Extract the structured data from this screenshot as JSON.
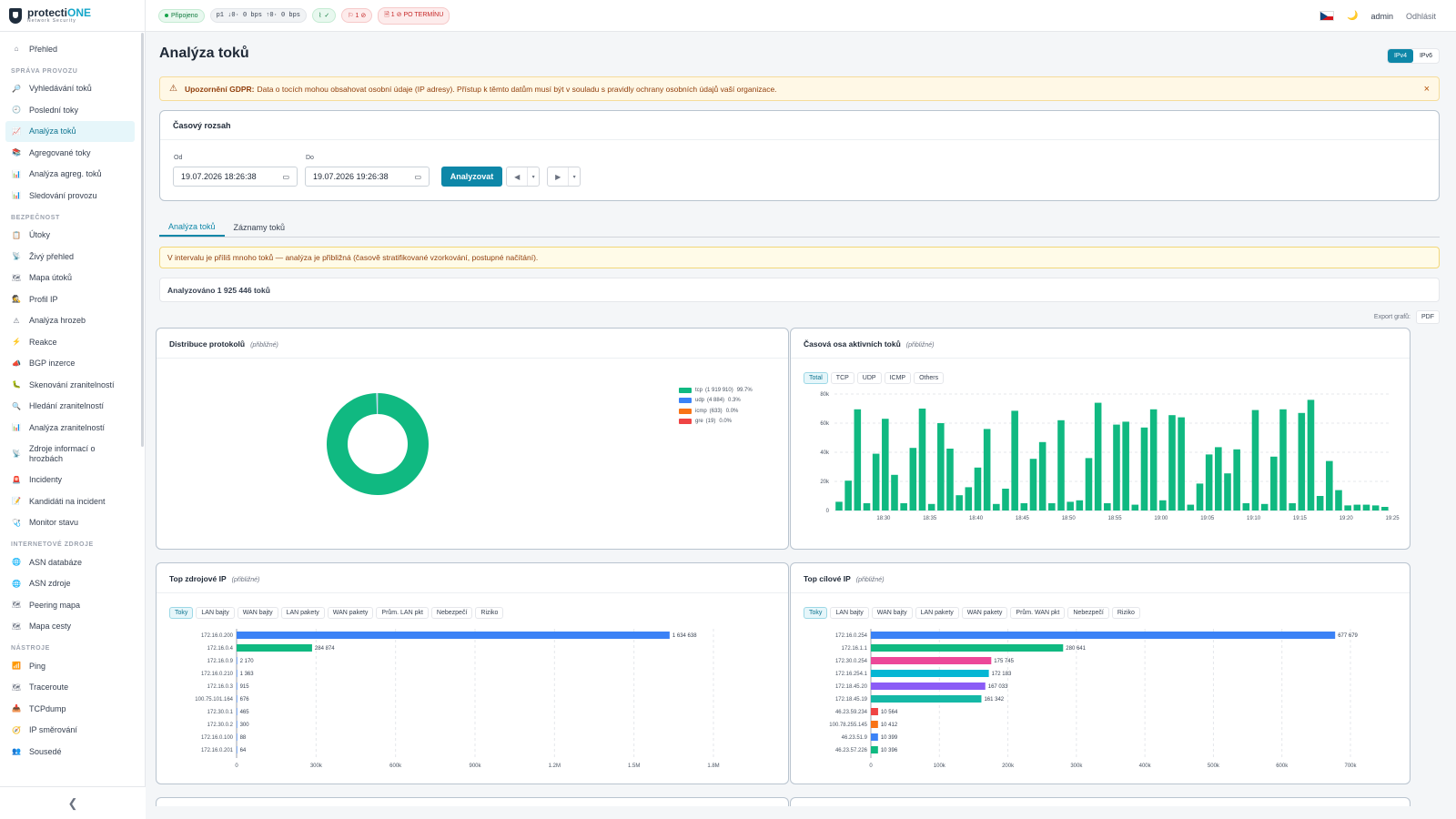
{
  "brand": {
    "name_a": "protecti",
    "name_b": "ONE",
    "sub": "Network Security"
  },
  "sidebar": {
    "top": [
      {
        "icon": "⌂",
        "label": "Přehled",
        "name": "home-icon"
      }
    ],
    "sections": [
      {
        "title": "SPRÁVA PROVOZU",
        "items": [
          {
            "icon": "🔎",
            "label": "Vyhledávání toků",
            "name": "search-icon"
          },
          {
            "icon": "🕘",
            "label": "Poslední toky",
            "name": "clock-icon"
          },
          {
            "icon": "📈",
            "label": "Analýza toků",
            "name": "chart-line-icon",
            "active": true
          },
          {
            "icon": "📚",
            "label": "Agregované toky",
            "name": "books-icon"
          },
          {
            "icon": "📊",
            "label": "Analýza agreg. toků",
            "name": "bar-chart-icon"
          },
          {
            "icon": "📊",
            "label": "Sledování provozu",
            "name": "bar-chart-icon"
          }
        ]
      },
      {
        "title": "BEZPEČNOST",
        "items": [
          {
            "icon": "📋",
            "label": "Útoky",
            "name": "clipboard-icon"
          },
          {
            "icon": "📡",
            "label": "Živý přehled",
            "name": "antenna-icon"
          },
          {
            "icon": "🗺",
            "label": "Mapa útoků",
            "name": "map-icon"
          },
          {
            "icon": "🕵",
            "label": "Profil IP",
            "name": "detective-icon"
          },
          {
            "icon": "⚠",
            "label": "Analýza hrozeb",
            "name": "warning-icon"
          },
          {
            "icon": "⚡",
            "label": "Reakce",
            "name": "lightning-icon"
          },
          {
            "icon": "📣",
            "label": "BGP inzerce",
            "name": "megaphone-icon"
          },
          {
            "icon": "🐛",
            "label": "Skenování zranitelností",
            "name": "bug-icon"
          },
          {
            "icon": "🔍",
            "label": "Hledání zranitelností",
            "name": "search-icon"
          },
          {
            "icon": "📊",
            "label": "Analýza zranitelností",
            "name": "bar-chart-icon"
          },
          {
            "icon": "📡",
            "label": "Zdroje informací o hrozbách",
            "name": "antenna-icon",
            "tall": true
          },
          {
            "icon": "🚨",
            "label": "Incidenty",
            "name": "siren-icon"
          },
          {
            "icon": "📝",
            "label": "Kandidáti na incident",
            "name": "memo-icon"
          },
          {
            "icon": "🩺",
            "label": "Monitor stavu",
            "name": "stethoscope-icon"
          }
        ]
      },
      {
        "title": "INTERNETOVÉ ZDROJE",
        "items": [
          {
            "icon": "🌐",
            "label": "ASN databáze",
            "name": "globe-icon"
          },
          {
            "icon": "🌐",
            "label": "ASN zdroje",
            "name": "globe-icon"
          },
          {
            "icon": "🗺",
            "label": "Peering mapa",
            "name": "map-icon"
          },
          {
            "icon": "🗺",
            "label": "Mapa cesty",
            "name": "map-icon"
          }
        ]
      },
      {
        "title": "NÁSTROJE",
        "items": [
          {
            "icon": "📶",
            "label": "Ping",
            "name": "signal-icon"
          },
          {
            "icon": "🗺",
            "label": "Traceroute",
            "name": "map-icon"
          },
          {
            "icon": "📥",
            "label": "TCPdump",
            "name": "inbox-icon"
          },
          {
            "icon": "🧭",
            "label": "IP směrování",
            "name": "compass-icon"
          },
          {
            "icon": "👥",
            "label": "Sousedé",
            "name": "users-icon"
          }
        ]
      }
    ],
    "collapse": "❮"
  },
  "topbar": {
    "connected": "Připojeno",
    "iface": "p1 ↓0· 0 bps ↑0· 0 bps",
    "flags": "⚐ 1 ⊘",
    "overdue": "🗎 1 ⊘ PO TERMÍNU",
    "user": "admin",
    "logout": "Odhlásit",
    "moon": "🌙"
  },
  "page": {
    "title": "Analýza toků",
    "ipv4": "IPv4",
    "ipv6": "IPv6"
  },
  "gdpr": {
    "title": "Upozornění GDPR:",
    "text": "Data o tocích mohou obsahovat osobní údaje (IP adresy). Přístup k těmto datům musí být v souladu s pravidly ochrany osobních údajů vaší organizace.",
    "close": "×"
  },
  "time": {
    "title": "Časový rozsah",
    "from_label": "Od",
    "from": "19.07.2026 18:26:38",
    "to_label": "Do",
    "to": "19.07.2026 19:26:38",
    "analyze": "Analyzovat",
    "prev": "◀",
    "next": "▶",
    "caret": "▾"
  },
  "tabs": [
    "Analýza toků",
    "Záznamy toků"
  ],
  "warning": "V intervalu je příliš mnoho toků — analýza je přibližná (časově stratifikované vzorkování, postupné načítání).",
  "analyzed": "Analyzováno 1 925 446 toků",
  "export": {
    "label": "Export grafů:",
    "pdf": "PDF"
  },
  "approx": "(přibližné)",
  "chart_data": [
    {
      "type": "pie",
      "title": "Distribuce protokolů",
      "slices": [
        {
          "name": "tcp",
          "count": "1 919 910",
          "pct": "99.7%",
          "value": 99.7,
          "color": "#10b981"
        },
        {
          "name": "udp",
          "count": "4 884",
          "pct": "0.3%",
          "value": 0.3,
          "color": "#3b82f6"
        },
        {
          "name": "icmp",
          "count": "633",
          "pct": "0.0%",
          "value": 0.03,
          "color": "#f97316"
        },
        {
          "name": "gre",
          "count": "19",
          "pct": "0.0%",
          "value": 0.001,
          "color": "#ef4444"
        }
      ]
    },
    {
      "type": "bar",
      "title": "Časová osa aktivních toků",
      "tabs": [
        "Total",
        "TCP",
        "UDP",
        "ICMP",
        "Others"
      ],
      "ylim": [
        0,
        80000
      ],
      "yticks": [
        "80k",
        "60k",
        "40k",
        "20k",
        "0"
      ],
      "xticks": [
        "18:30",
        "18:35",
        "18:40",
        "18:45",
        "18:50",
        "18:55",
        "19:00",
        "19:05",
        "19:10",
        "19:15",
        "19:20",
        "19:25"
      ],
      "color": "#10b981",
      "values": [
        6000,
        20500,
        69500,
        5000,
        39000,
        63000,
        24500,
        5000,
        43000,
        70000,
        4500,
        60000,
        42500,
        10500,
        16000,
        29500,
        56000,
        4500,
        15000,
        68500,
        5000,
        35500,
        47000,
        5000,
        62000,
        6000,
        7000,
        36000,
        74000,
        5000,
        59000,
        61000,
        4000,
        57000,
        69500,
        7000,
        65500,
        64000,
        4000,
        18500,
        38500,
        43500,
        25500,
        42000,
        5000,
        69000,
        4500,
        37000,
        69500,
        5000,
        67000,
        76000,
        10000,
        34000,
        14000,
        3500,
        4000,
        4000,
        3500,
        2500
      ]
    },
    {
      "type": "bar",
      "orientation": "horizontal",
      "title": "Top zdrojové IP",
      "tabs": [
        "Toky",
        "LAN bajty",
        "WAN bajty",
        "LAN pakety",
        "WAN pakety",
        "Prům. LAN pkt",
        "Nebezpečí",
        "Riziko"
      ],
      "xmax": 1800000,
      "xticks": [
        "0",
        "300k",
        "600k",
        "900k",
        "1.2M",
        "1.5M",
        "1.8M"
      ],
      "categories": [
        "172.16.0.200",
        "172.16.0.4",
        "172.16.0.9",
        "172.16.0.210",
        "172.16.0.3",
        "100.75.101.164",
        "172.30.0.1",
        "172.30.0.2",
        "172.16.0.100",
        "172.16.0.201"
      ],
      "values": [
        1634638,
        284874,
        2170,
        1363,
        915,
        676,
        465,
        300,
        88,
        64
      ],
      "labels": [
        "1 634 638",
        "284 874",
        "2 170",
        "1 363",
        "915",
        "676",
        "465",
        "300",
        "88",
        "64"
      ],
      "colors": [
        "#3b82f6",
        "#10b981",
        "#3b82f6",
        "#3b82f6",
        "#3b82f6",
        "#3b82f6",
        "#3b82f6",
        "#3b82f6",
        "#3b82f6",
        "#3b82f6"
      ]
    },
    {
      "type": "bar",
      "orientation": "horizontal",
      "title": "Top cílové IP",
      "tabs": [
        "Toky",
        "LAN bajty",
        "WAN bajty",
        "LAN pakety",
        "WAN pakety",
        "Prům. WAN pkt",
        "Nebezpečí",
        "Riziko"
      ],
      "xmax": 700000,
      "xticks": [
        "0",
        "100k",
        "200k",
        "300k",
        "400k",
        "500k",
        "600k",
        "700k"
      ],
      "categories": [
        "172.16.0.254",
        "172.16.1.1",
        "172.30.0.254",
        "172.16.254.1",
        "172.18.45.20",
        "172.18.45.19",
        "46.23.59.234",
        "100.78.255.145",
        "46.23.51.9",
        "46.23.57.226"
      ],
      "values": [
        677679,
        280641,
        175745,
        172183,
        167033,
        161342,
        10564,
        10412,
        10399,
        10396
      ],
      "labels": [
        "677 679",
        "280 641",
        "175 745",
        "172 183",
        "167 033",
        "161 342",
        "10 564",
        "10 412",
        "10 399",
        "10 396"
      ],
      "colors": [
        "#3b82f6",
        "#10b981",
        "#ec4899",
        "#06b6d4",
        "#8b5cf6",
        "#14b8a6",
        "#ef4444",
        "#f97316",
        "#3b82f6",
        "#10b981"
      ]
    }
  ]
}
